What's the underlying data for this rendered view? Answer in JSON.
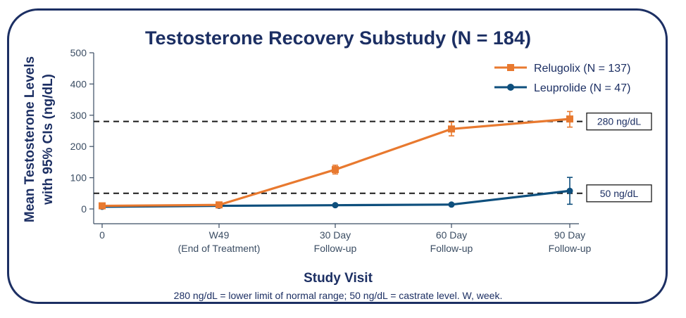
{
  "chart_data": {
    "type": "line",
    "title": "Testosterone Recovery Substudy (N = 184)",
    "ylabel_lines": [
      "Mean Testosterone Levels",
      "with 95% CIs (ng/dL)"
    ],
    "xlabel": "Study Visit",
    "footnote": "280 ng/dL = lower limit of normal range; 50 ng/dL = castrate level. W, week.",
    "categories": [
      [
        "0"
      ],
      [
        "W49",
        "(End of Treatment)"
      ],
      [
        "30 Day",
        "Follow-up"
      ],
      [
        "60 Day",
        "Follow-up"
      ],
      [
        "90 Day",
        "Follow-up"
      ]
    ],
    "ylim": [
      0,
      500
    ],
    "yticks": [
      "0",
      "100",
      "200",
      "300",
      "400",
      "500"
    ],
    "legend_position": "top-right",
    "series": [
      {
        "name": "Relugolix (N = 137)",
        "color": "#e8792f",
        "marker": "square",
        "values": [
          10,
          13,
          126,
          256,
          288
        ],
        "ci_low": [
          5,
          8,
          112,
          234,
          262
        ],
        "ci_high": [
          15,
          18,
          140,
          278,
          312
        ]
      },
      {
        "name": "Leuprolide (N = 47)",
        "color": "#0e4f7d",
        "marker": "circle",
        "values": [
          7,
          10,
          12,
          14,
          58
        ],
        "ci_low": [
          4,
          7,
          9,
          11,
          15
        ],
        "ci_high": [
          10,
          13,
          15,
          17,
          101
        ]
      }
    ],
    "reference_lines": [
      {
        "value": 280,
        "label": "280 ng/dL"
      },
      {
        "value": 50,
        "label": "50 ng/dL"
      }
    ]
  }
}
